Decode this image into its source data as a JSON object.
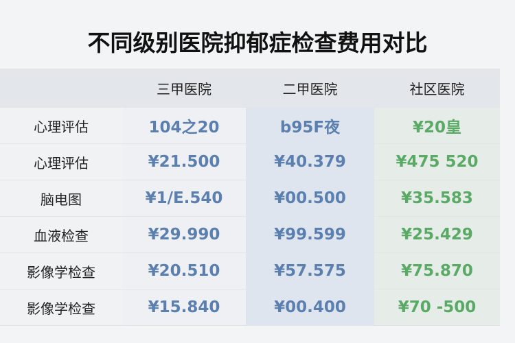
{
  "title": "不同级别医院抑郁症检查费用对比",
  "columns": [
    "",
    "三甲医院",
    "二甲医院",
    "社区医院"
  ],
  "rows": [
    {
      "label": "心理评估",
      "values": [
        "104之20",
        "b95F夜",
        "¥20皇"
      ]
    },
    {
      "label": "心理评估",
      "values": [
        "¥21.500",
        "¥40.379",
        "¥475 520"
      ]
    },
    {
      "label": "脑电图",
      "values": [
        "¥1/E.540",
        "¥00.500",
        "¥35.583"
      ]
    },
    {
      "label": "血液检查",
      "values": [
        "¥29.990",
        "¥99.599",
        "¥25.429"
      ]
    },
    {
      "label": "影像学检查",
      "values": [
        "¥20.510",
        "¥57.575",
        "¥75.870"
      ]
    },
    {
      "label": "影像学检查",
      "values": [
        "¥15.840",
        "¥00.400",
        "¥70 -500"
      ]
    }
  ],
  "colors": {
    "col1_text": "#5b7fae",
    "col2_text": "#5b7fae",
    "col3_text": "#5aaa66"
  }
}
